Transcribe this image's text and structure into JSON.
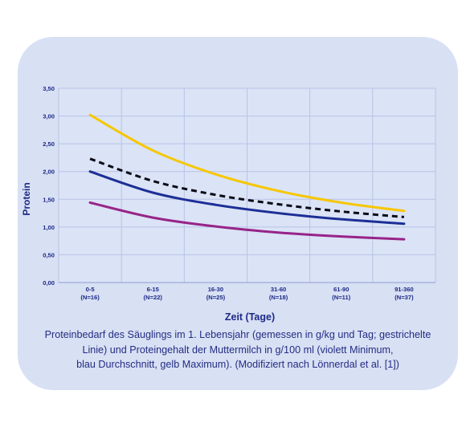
{
  "chart_data": {
    "type": "line",
    "ylabel": "Protein",
    "xlabel": "Zeit (Tage)",
    "categories": [
      "0-5",
      "6-15",
      "16-30",
      "31-60",
      "61-90",
      "91-360"
    ],
    "category_sublabels": [
      "(N=16)",
      "(N=22)",
      "(N=25)",
      "(N=18)",
      "(N=11)",
      "(N=37)"
    ],
    "y_ticks": [
      "0,00",
      "0,50",
      "1,00",
      "1,50",
      "2,00",
      "2,50",
      "3,00",
      "3,50"
    ],
    "ylim": [
      0,
      3.5
    ],
    "grid": true,
    "series": [
      {
        "color": "#f6c700",
        "dashed": false,
        "values": [
          3.02,
          2.38,
          1.95,
          1.65,
          1.44,
          1.29
        ]
      },
      {
        "color": "#0a0a14",
        "dashed": true,
        "values": [
          2.23,
          1.83,
          1.58,
          1.41,
          1.28,
          1.18
        ]
      },
      {
        "color": "#1c2f96",
        "dashed": false,
        "values": [
          2.0,
          1.62,
          1.4,
          1.25,
          1.14,
          1.06
        ]
      },
      {
        "color": "#972488",
        "dashed": false,
        "values": [
          1.44,
          1.17,
          1.01,
          0.9,
          0.83,
          0.78
        ]
      }
    ]
  },
  "caption": {
    "line1": "Proteinbedarf des Säuglings im 1. Lebensjahr (gemessen in g/kg und Tag; gestrichelte",
    "line2": "Linie) und Proteingehalt der Muttermilch in g/100 ml (violett Minimum,",
    "line3": "blau Durchschnitt, gelb Maximum). (Modifiziert nach Lönnerdal et al. [1])"
  }
}
